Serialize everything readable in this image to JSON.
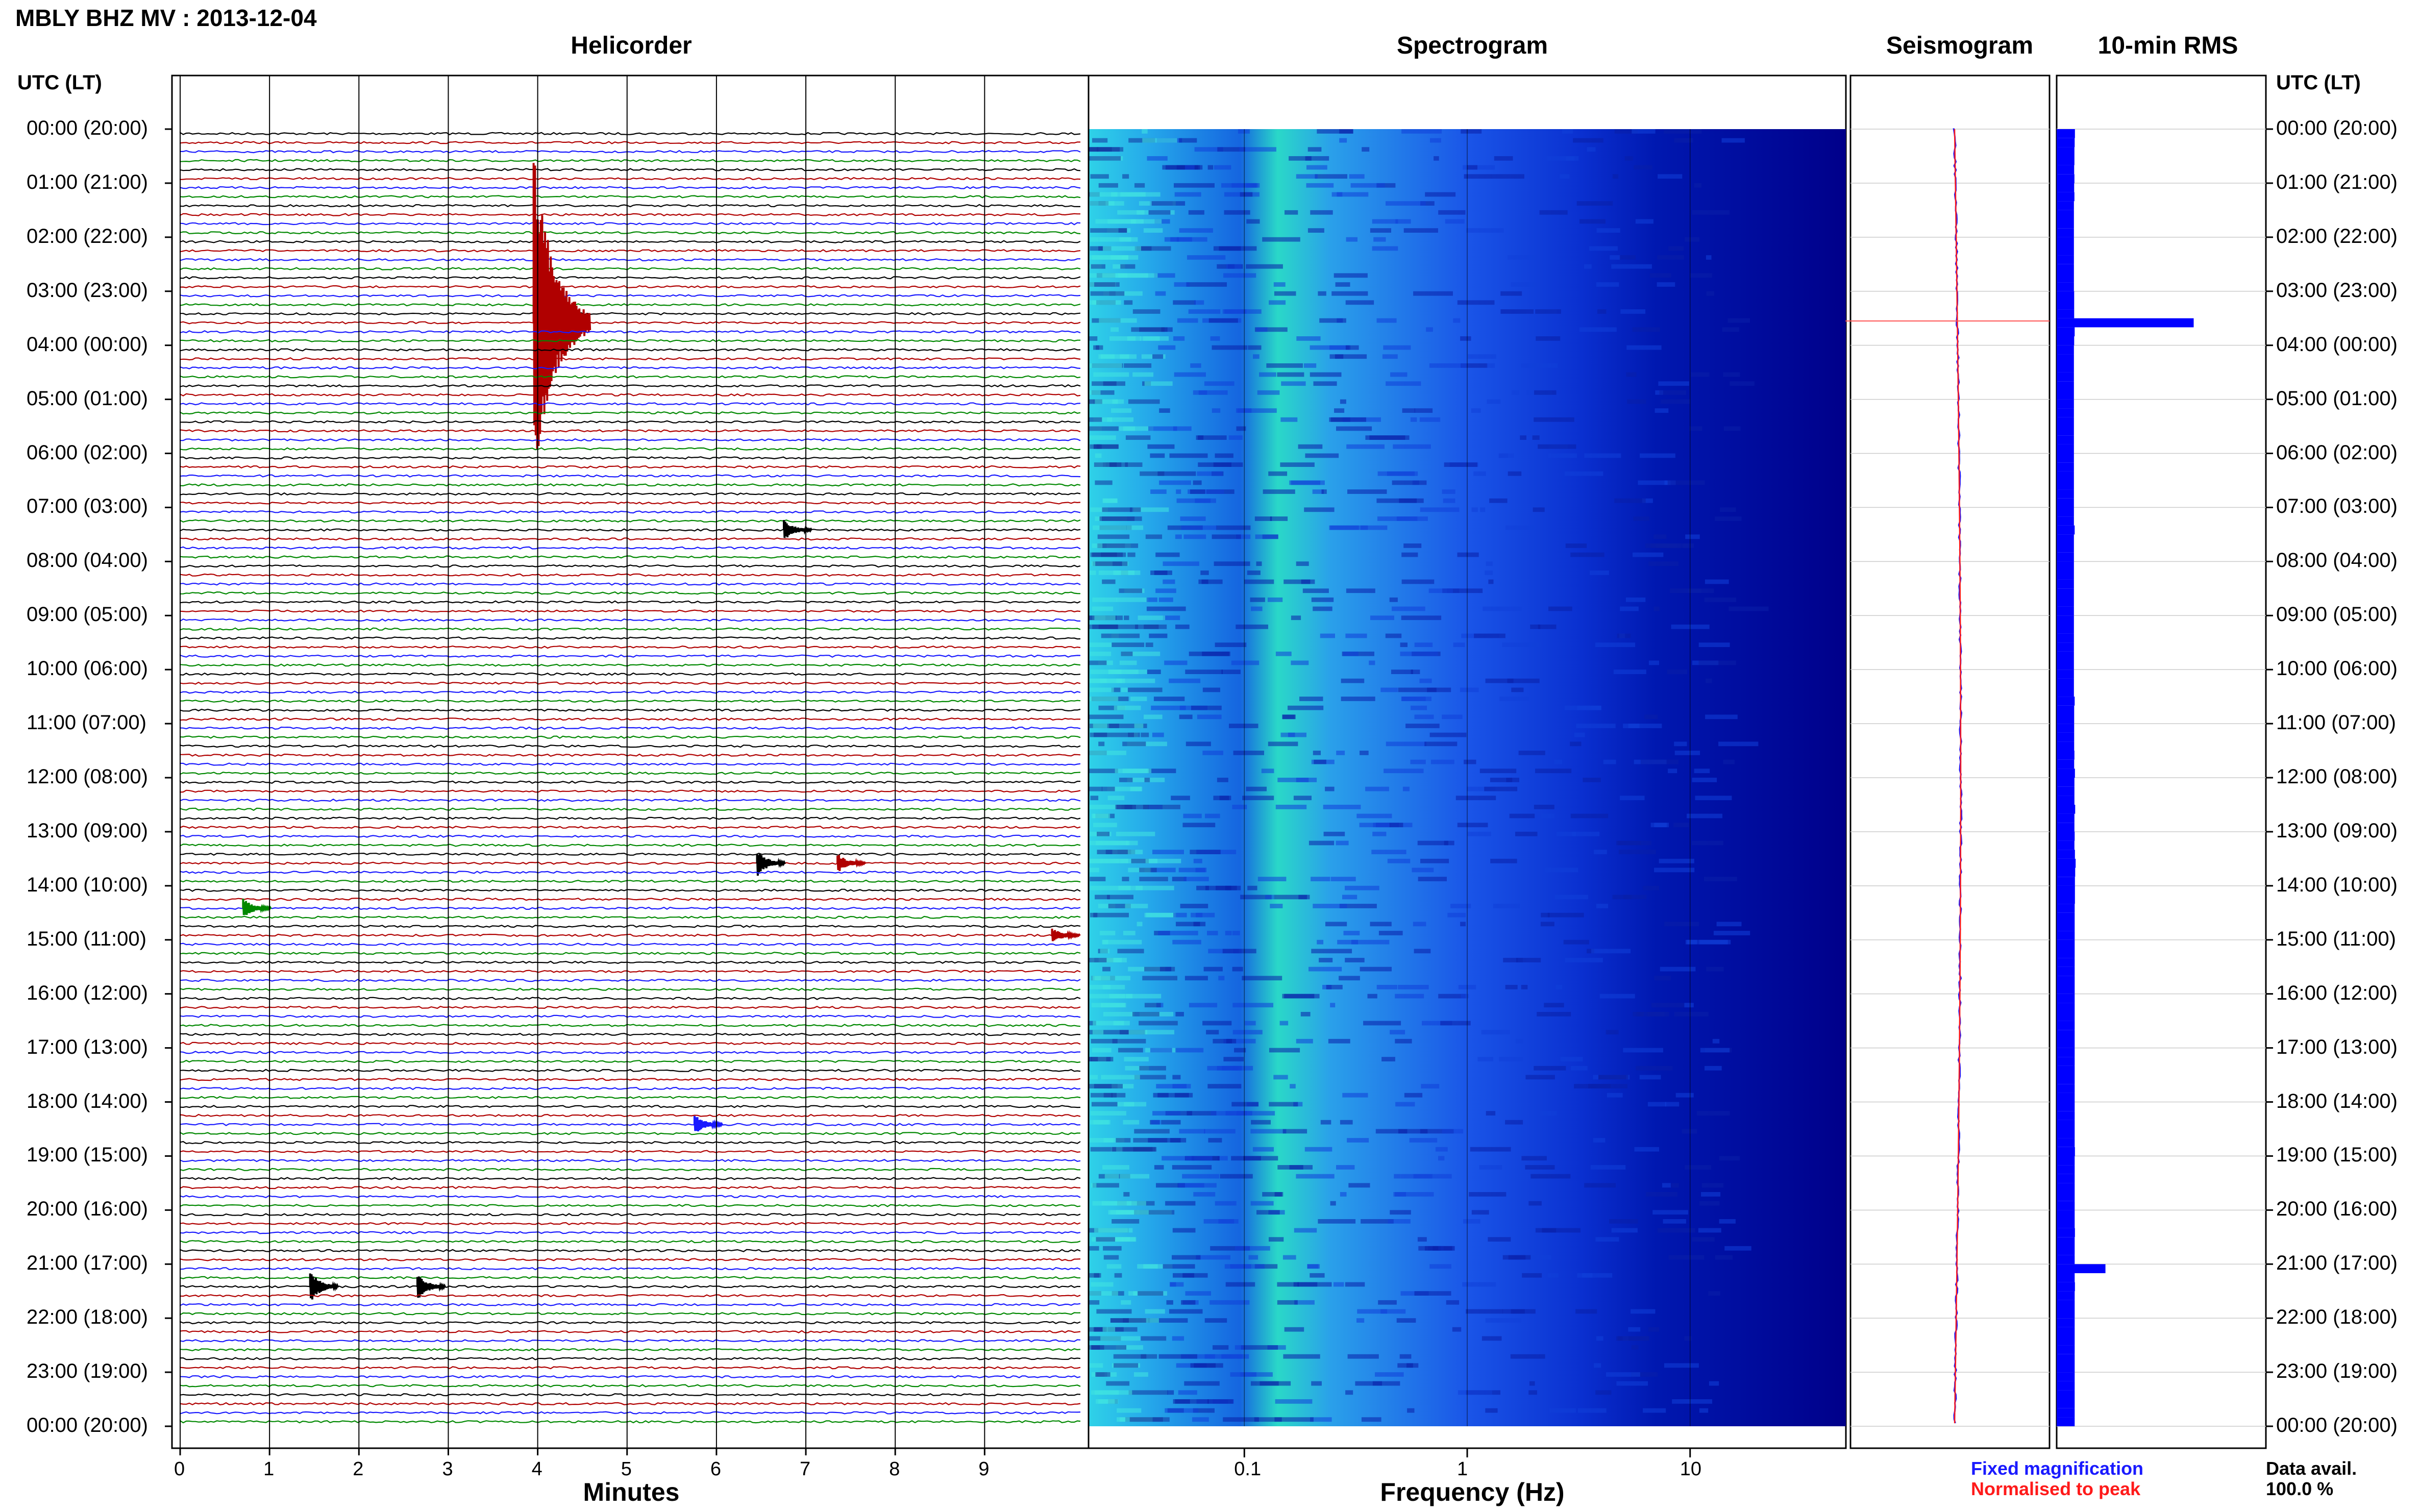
{
  "title": "MBLY BHZ MV : 2013-12-04",
  "panels": {
    "helicorder": "Helicorder",
    "spectrogram": "Spectrogram",
    "seismogram": "Seismogram",
    "rms": "10-min RMS"
  },
  "time_axis_header_left": "UTC (LT)",
  "time_axis_header_right": "UTC (LT)",
  "x_labels": {
    "helicorder": "Minutes",
    "spectrogram": "Frequency (Hz)"
  },
  "legend": {
    "fixed": "Fixed magnification",
    "normalised": "Normalised to peak",
    "fixed_color": "#1a1aff",
    "normalised_color": "#ff1a1a"
  },
  "availability": {
    "label": "Data avail.",
    "value": "100.0 %"
  },
  "colors": {
    "trace_cycle": [
      "#000000",
      "#b00000",
      "#1a1aff",
      "#008800"
    ],
    "grid": "#000000",
    "spectrogram_low": "#00007a",
    "spectrogram_high": "#3cf0e0",
    "rms_bar": "#0000ff",
    "seismogram_line": "#ff0000"
  },
  "chart_data": [
    {
      "type": "line",
      "name": "helicorder",
      "x_ticks": [
        "0",
        "1",
        "2",
        "3",
        "4",
        "5",
        "6",
        "7",
        "8",
        "9"
      ],
      "xlabel": "Minutes",
      "time_labels": [
        "00:00 (20:00)",
        "01:00 (21:00)",
        "02:00 (22:00)",
        "03:00 (23:00)",
        "04:00 (00:00)",
        "05:00 (01:00)",
        "06:00 (02:00)",
        "07:00 (03:00)",
        "08:00 (04:00)",
        "09:00 (05:00)",
        "10:00 (06:00)",
        "11:00 (07:00)",
        "12:00 (08:00)",
        "13:00 (09:00)",
        "14:00 (10:00)",
        "15:00 (11:00)",
        "16:00 (12:00)",
        "17:00 (13:00)",
        "18:00 (14:00)",
        "19:00 (15:00)",
        "20:00 (16:00)",
        "21:00 (17:00)",
        "22:00 (18:00)",
        "23:00 (19:00)",
        "00:00 (20:00)"
      ],
      "traces_per_hour": 6,
      "events": [
        {
          "hour": 3.5,
          "minute": 4.0,
          "amp": 3.2,
          "color": "#b00000"
        },
        {
          "hour": 13.5,
          "minute": 6.5,
          "amp": 0.25,
          "color": "#000000"
        },
        {
          "hour": 13.5,
          "minute": 7.4,
          "amp": 0.18,
          "color": "#b00000"
        },
        {
          "hour": 14.33,
          "minute": 0.75,
          "amp": 0.18,
          "color": "#008800"
        },
        {
          "hour": 14.83,
          "minute": 9.8,
          "amp": 0.15,
          "color": "#b00000"
        },
        {
          "hour": 18.33,
          "minute": 5.8,
          "amp": 0.2,
          "color": "#1a1aff"
        },
        {
          "hour": 21.33,
          "minute": 1.5,
          "amp": 0.3,
          "color": "#000000"
        },
        {
          "hour": 21.33,
          "minute": 2.7,
          "amp": 0.25,
          "color": "#000000"
        },
        {
          "hour": 7.33,
          "minute": 6.8,
          "amp": 0.2,
          "color": "#000000"
        }
      ]
    },
    {
      "type": "heatmap",
      "name": "spectrogram",
      "xlabel": "Frequency (Hz)",
      "x_scale": "log",
      "x_range": [
        0.02,
        50
      ],
      "x_ticks": [
        "0.1",
        "1",
        "10"
      ],
      "time_range_hours": [
        0,
        24
      ]
    },
    {
      "type": "line",
      "name": "seismogram",
      "series": [
        {
          "name": "Fixed magnification",
          "color": "#1a1aff"
        },
        {
          "name": "Normalised to peak",
          "color": "#ff1a1a"
        }
      ]
    },
    {
      "type": "bar",
      "name": "10-min RMS",
      "orientation": "horizontal",
      "bin_minutes": 10,
      "values": [
        0.6,
        0.55,
        0.5,
        0.5,
        0.45,
        0.5,
        0.45,
        0.5,
        0.4,
        0.4,
        0.4,
        0.4,
        0.4,
        0.4,
        0.4,
        0.4,
        0.4,
        0.4,
        0.45,
        0.45,
        0.45,
        4.0,
        0.55,
        0.45,
        0.4,
        0.4,
        0.4,
        0.4,
        0.4,
        0.4,
        0.4,
        0.4,
        0.4,
        0.4,
        0.4,
        0.4,
        0.4,
        0.4,
        0.4,
        0.4,
        0.4,
        0.4,
        0.4,
        0.4,
        0.55,
        0.4,
        0.4,
        0.4,
        0.4,
        0.4,
        0.4,
        0.4,
        0.4,
        0.4,
        0.4,
        0.4,
        0.4,
        0.4,
        0.4,
        0.4,
        0.4,
        0.4,
        0.4,
        0.55,
        0.45,
        0.45,
        0.45,
        0.45,
        0.45,
        0.5,
        0.45,
        0.6,
        0.5,
        0.5,
        0.5,
        0.65,
        0.5,
        0.5,
        0.55,
        0.5,
        0.6,
        0.75,
        0.65,
        0.6,
        0.6,
        0.6,
        0.55,
        0.55,
        0.55,
        0.55,
        0.55,
        0.55,
        0.55,
        0.55,
        0.55,
        0.55,
        0.55,
        0.55,
        0.55,
        0.55,
        0.55,
        0.55,
        0.55,
        0.55,
        0.55,
        0.55,
        0.55,
        0.55,
        0.55,
        0.55,
        0.55,
        0.55,
        0.55,
        0.6,
        0.55,
        0.55,
        0.55,
        0.55,
        0.55,
        0.55,
        0.55,
        0.55,
        0.6,
        0.55,
        0.55,
        0.55,
        1.1,
        0.55,
        0.6,
        0.55,
        0.55,
        0.55,
        0.55,
        0.55,
        0.55,
        0.55,
        0.55,
        0.55,
        0.55,
        0.55,
        0.55,
        0.55,
        0.55,
        0.55
      ]
    }
  ]
}
